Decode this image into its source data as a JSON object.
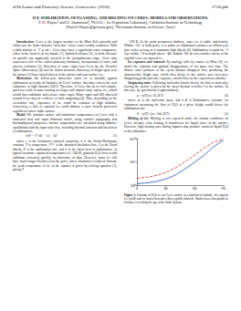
{
  "header": {
    "left": "47th Lunar and Planetary Science Conference (2016)",
    "right": "2736.pdf"
  },
  "title": "ICE SUBLIMATION, OUTGASSING, AND MELTING ON CERES: MODELS AND OBSERVATIONS.",
  "authors": "P. O. Hayne¹ and O. Aharonson², ¹NASA – Jet Propulsion Laboratory, California Institute of Technology (Paul.O.Hayne@jpl.nasa.gov), ²Weizmann Institute of Science, Israel",
  "columns": [
    [
      {
        "heading": "Introduction:",
        "text": "Ceres is the largest member of the Main Belt asteroids and orbits near the Solar System's \"frost line\" where water readily condenses. With a bulk density of ~2 g cm⁻³, Ceres may have a significant water component, either in the form of an icy mantle [1], hydrated silicates [2], or both. Because its growth was apparently arrested at the protoplanetary stage, Ceres may represent a relic of the earliest planetary formation, incorporation of water, and interior evolution [3]. Detection of water vapor near Ceres by the Herschel Space Observatory [4] and the Dawn mission's discovery of bright spots near the surface [5] have fueled interest in the surface and near-surface ice."
      },
      {
        "heading": "Motivation:",
        "text": "On billion-year timescales water ice is unstable against sublimation at nearly all latitudes on Ceres' surface, but may exist in the near subsurface at high latitudes [6][7]. Therefore, if Ceres has an ice-rich mantle, processes such as mass wasting on slopes and impacts may expose ice, which would then sublimate and release water vapor. Water vapor and OH observed around Ceres may be evidence of such outgassing [4]. Thus, depending on the excavation rate, exposures of ice could be common at high latitudes. Conversely, a lack of exposed ice could indicate a more heavily processed regolith or a more stable surface."
      },
      {
        "heading": "Model:",
        "text": "We simulate surface and subsurface temperatures on Ceres with a numerical heat and vapor diffusion model, using realistic topography and thermophysical properties. Surface temperatures are calculated using radiative equilibrium with the input solar flux, including thermal emission and latent heat of sublimation:"
      },
      {
        "equation": "εσT⁴ = F☉(1 − A) − LE",
        "number": "(1)"
      },
      {
        "text": "where ε is the bolometric infrared emissivity, σ is the Stefan-Boltzmann constant, T is temperature, F☉ is the absorbed insolation flux, A is the Bond albedo, E is the sublimation rate, and L is the latent heat of sublimation. At typical noontime equatorial temperatures of ~240 K, granular H₂O frost would sublimate extremely quickly, on timescales of days. However, water ice will have much longer lifetimes near the poles, where insolation is reduced. Instead, the peak temperature of ice at the equator is given by solving equation (1), giving T"
      }
    ],
    [
      {
        "text": "~190 K. In the polar permanent shadows, water ice is stable indefinitely. Within ~20° of both poles, it is stable on illuminated surfaces on billion-year time scales as long as it maintains high albedo [6]. Sublimation is rapid for ~1 Gyr within ~10 m depth above ~40° latitude. We do not consider effects of the regolith cover on exposed ice."
      },
      {
        "heading": "Ice exposure and removal:",
        "text": "By analogy with icy craters on Mars [8], we model the exposure and gradual disappearance of icy spots over time. The thinner outer portions of the ejecta blanket disappear first, producing the characteristic bright rays, which then decay as the surface area decreases. Outgassing peaks just after exposure, and declines as the exposed area shrinks."
      },
      {
        "heading": "Outgassing rates:",
        "text": "Following molecular kinetic theory, the flux of molecules leaving the surface is given by the mean thermal velocity v̄ at the surface. In this case, the gas density is approximately"
      },
      {
        "equation": "ρ = p(T) m / (k_B T)",
        "number": "(2)"
      },
      {
        "text": "where m is the molecular mass, and k_B is Boltzmann's constant. An instrument measuring the flux of H₂O at a given height would detect the sublimation rate"
      },
      {
        "equation": "E = p(T) √(m / 2πk_B T)",
        "number": "(3)"
      },
      {
        "heading": "Melting of ice:",
        "text": "Melting is not expected under the normal conditions on Ceres, because solar heating is insufficient for liquid water at the surface. However, high heating rates during impacts may produce transient liquid H₂O in the subsurface."
      }
    ]
  ],
  "figure": {
    "caption_label": "Figure 1:",
    "caption": "Lifetime of H₂O ice on Ceres' surface as a function of latitude, for exposed ice (solid) and ice buried beneath a thin regolith (dashed). Shaded area corresponds to lifetimes exceeding the age of the Solar System."
  },
  "chart_data": {
    "type": "line",
    "log": "y",
    "grid": false,
    "x": [
      0,
      10,
      20,
      30,
      40,
      50,
      60,
      70,
      80,
      90
    ],
    "xlim": [
      0,
      90
    ],
    "xticks": [
      0,
      30,
      60,
      90
    ],
    "ylim": [
      1,
      10000000000
    ],
    "yticks": [
      {
        "value": 1,
        "label": "10⁰"
      },
      {
        "value": 100000,
        "label": "10⁵"
      },
      {
        "value": 10000000000,
        "label": "10¹⁰"
      }
    ],
    "series": [
      {
        "color": "#1f4fd1",
        "line_style": "solid",
        "values": [
          2,
          3,
          6,
          20,
          150,
          3000,
          80000,
          3000000,
          200000000,
          5000000000
        ]
      },
      {
        "color": "#d12a1f",
        "line_style": "dashed",
        "values": [
          30,
          50,
          120,
          500,
          5000,
          100000,
          3000000,
          100000000,
          2000000000,
          8000000000
        ]
      }
    ]
  }
}
